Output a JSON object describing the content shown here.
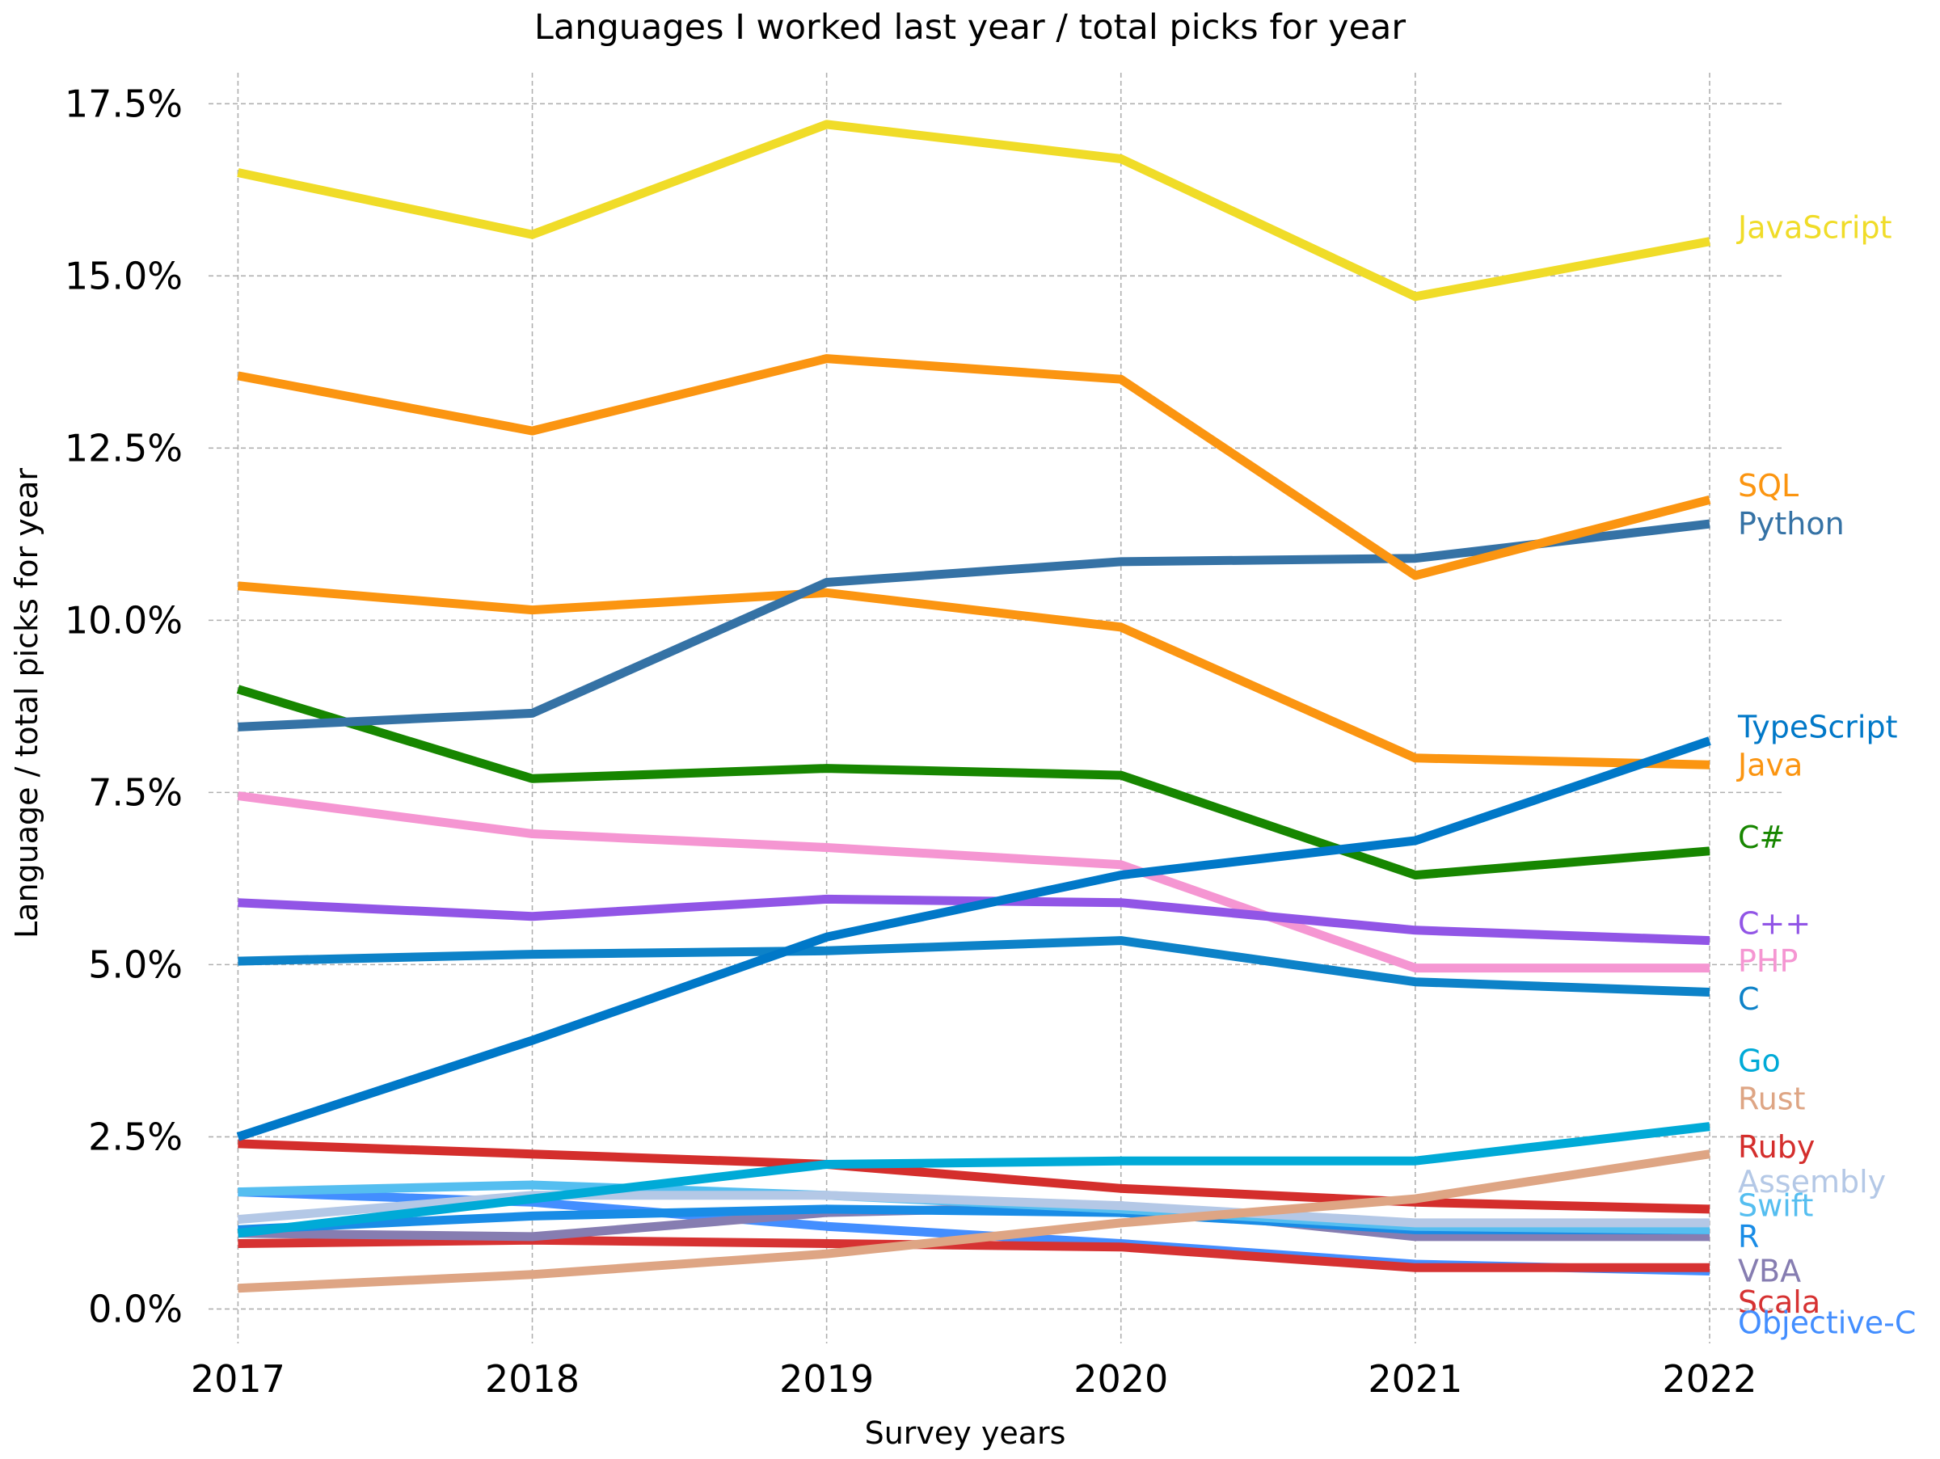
{
  "chart_data": {
    "type": "line",
    "title": "Languages I worked last year / total picks for year",
    "xlabel": "Survey years",
    "ylabel": "Language / total picks for year",
    "x": [
      2017,
      2018,
      2019,
      2020,
      2021,
      2022
    ],
    "xlim": [
      2016.9,
      2022.25
    ],
    "ylim": [
      -0.5,
      17.95
    ],
    "yticks": [
      0.0,
      2.5,
      5.0,
      7.5,
      10.0,
      12.5,
      15.0,
      17.5
    ],
    "ytick_labels": [
      "0.0%",
      "2.5%",
      "5.0%",
      "7.5%",
      "10.0%",
      "12.5%",
      "15.0%",
      "17.5%"
    ],
    "grid": true,
    "legend": "line-end labels on right",
    "series": [
      {
        "name": "JavaScript",
        "color": "#f0dc28",
        "values": [
          16.5,
          15.6,
          17.2,
          16.7,
          14.7,
          15.5
        ],
        "label_y": 15.7
      },
      {
        "name": "SQL",
        "color": "#fb9511",
        "values": [
          13.55,
          12.75,
          13.8,
          13.5,
          10.65,
          11.75
        ],
        "label_y": 11.95
      },
      {
        "name": "Python",
        "color": "#3572a5",
        "values": [
          8.45,
          8.65,
          10.55,
          10.85,
          10.9,
          11.4
        ],
        "label_y": 11.4
      },
      {
        "name": "TypeScript",
        "color": "#0078c8",
        "values": [
          2.5,
          3.9,
          5.4,
          6.3,
          6.8,
          8.25
        ],
        "label_y": 8.45
      },
      {
        "name": "Java",
        "color": "#fb9511",
        "values": [
          10.5,
          10.15,
          10.4,
          9.9,
          8.0,
          7.9
        ],
        "label_y": 7.9
      },
      {
        "name": "C#",
        "color": "#178600",
        "values": [
          9.0,
          7.7,
          7.85,
          7.75,
          6.3,
          6.65
        ],
        "label_y": 6.85
      },
      {
        "name": "C++",
        "color": "#9155e6",
        "values": [
          5.9,
          5.7,
          5.95,
          5.9,
          5.5,
          5.35
        ],
        "label_y": 5.6
      },
      {
        "name": "PHP",
        "color": "#f596d2",
        "values": [
          7.45,
          6.9,
          6.7,
          6.45,
          4.95,
          4.95
        ],
        "label_y": 5.05
      },
      {
        "name": "C",
        "color": "#0d82c8",
        "values": [
          5.05,
          5.15,
          5.2,
          5.35,
          4.75,
          4.6
        ],
        "label_y": 4.5
      },
      {
        "name": "Go",
        "color": "#00aad7",
        "values": [
          1.1,
          1.6,
          2.1,
          2.15,
          2.15,
          2.65
        ],
        "label_y": 3.6
      },
      {
        "name": "Rust",
        "color": "#dea584",
        "values": [
          0.3,
          0.5,
          0.8,
          1.25,
          1.6,
          2.25
        ],
        "label_y": 3.05
      },
      {
        "name": "Ruby",
        "color": "#d42e2c",
        "values": [
          2.4,
          2.25,
          2.1,
          1.75,
          1.55,
          1.45
        ],
        "label_y": 2.35
      },
      {
        "name": "Assembly",
        "color": "#b4c8e6",
        "values": [
          1.3,
          1.65,
          1.65,
          1.5,
          1.25,
          1.25
        ],
        "label_y": 1.85
      },
      {
        "name": "Swift",
        "color": "#55bef0",
        "values": [
          1.7,
          1.8,
          1.65,
          1.45,
          1.2,
          1.15
        ],
        "label_y": 1.5
      },
      {
        "name": "R",
        "color": "#198ce6",
        "values": [
          1.15,
          1.35,
          1.45,
          1.4,
          1.15,
          1.15
        ],
        "label_y": 1.05
      },
      {
        "name": "VBA",
        "color": "#867db1",
        "values": [
          1.1,
          1.05,
          1.4,
          1.5,
          1.05,
          1.05
        ],
        "label_y": 0.55
      },
      {
        "name": "Scala",
        "color": "#d63232",
        "values": [
          0.95,
          1.0,
          0.95,
          0.9,
          0.6,
          0.6
        ],
        "label_y": 0.1
      },
      {
        "name": "Objective-C",
        "color": "#438eff",
        "values": [
          1.7,
          1.55,
          1.2,
          0.95,
          0.65,
          0.55
        ],
        "label_y": -0.2
      }
    ]
  }
}
